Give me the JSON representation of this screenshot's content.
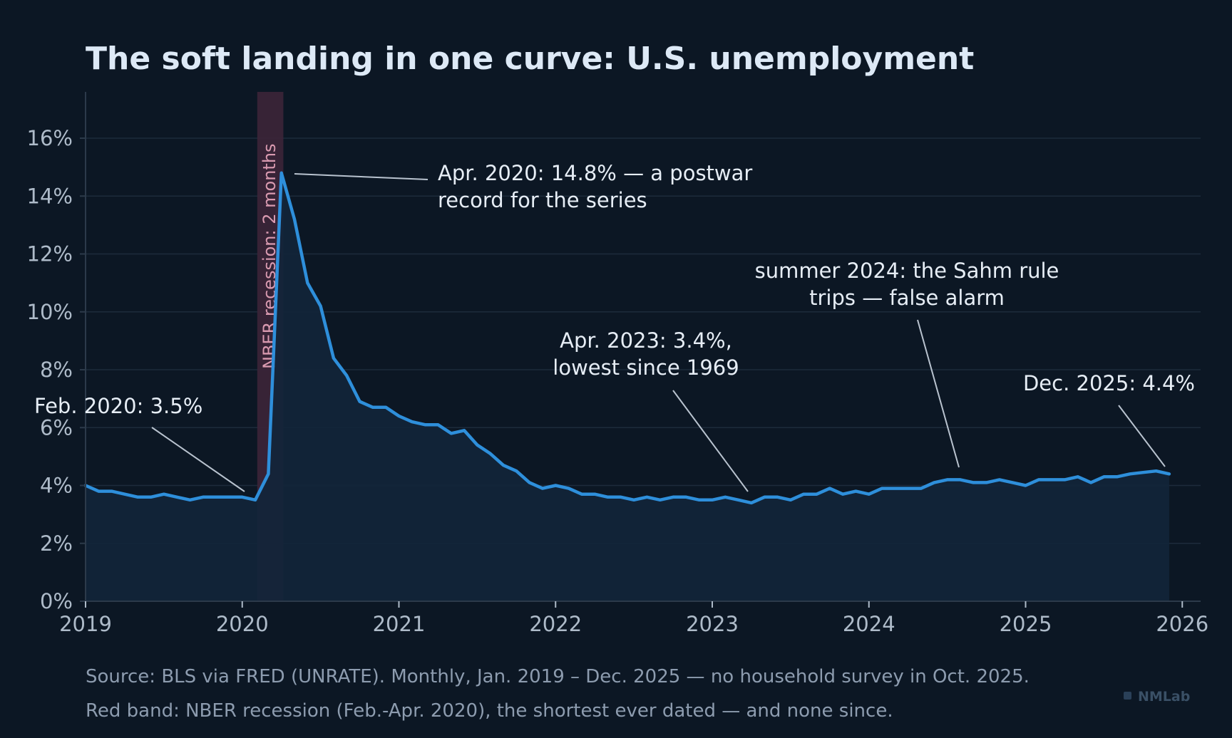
{
  "chart_data": {
    "type": "area",
    "title": "The soft landing in one curve: U.S. unemployment",
    "xlabel": "",
    "ylabel": "",
    "ylim": [
      0,
      17.6
    ],
    "y_ticks": [
      "0%",
      "2%",
      "4%",
      "6%",
      "8%",
      "10%",
      "12%",
      "14%",
      "16%"
    ],
    "x_ticks": [
      "2019",
      "2020",
      "2021",
      "2022",
      "2023",
      "2024",
      "2025",
      "2026"
    ],
    "grid": true,
    "start": "2019-01",
    "frequency": "monthly",
    "series": [
      {
        "values": [
          4.0,
          3.8,
          3.8,
          3.7,
          3.6,
          3.6,
          3.7,
          3.6,
          3.5,
          3.6,
          3.6,
          3.6,
          3.6,
          3.5,
          4.4,
          14.8,
          13.2,
          11.0,
          10.2,
          8.4,
          7.8,
          6.9,
          6.7,
          6.7,
          6.4,
          6.2,
          6.1,
          6.1,
          5.8,
          5.9,
          5.4,
          5.1,
          4.7,
          4.5,
          4.1,
          3.9,
          4.0,
          3.9,
          3.7,
          3.7,
          3.6,
          3.6,
          3.5,
          3.6,
          3.5,
          3.6,
          3.6,
          3.5,
          3.5,
          3.6,
          3.5,
          3.4,
          3.6,
          3.6,
          3.5,
          3.7,
          3.7,
          3.9,
          3.7,
          3.8,
          3.7,
          3.9,
          3.9,
          3.9,
          3.9,
          4.1,
          4.2,
          4.2,
          4.1,
          4.1,
          4.2,
          4.1,
          4.0,
          4.2,
          4.2,
          4.2,
          4.3,
          4.1,
          4.3,
          4.3,
          4.4,
          4.45,
          4.5,
          4.4
        ],
        "missing": [
          "2025-10"
        ]
      }
    ],
    "shaded_band": {
      "from": "2020-02",
      "to": "2020-04",
      "label": "NBER recession: 2 months"
    },
    "annotations": [
      {
        "text": [
          "Feb. 2020: 3.5%"
        ],
        "point": "2020-02"
      },
      {
        "text": [
          "Apr. 2020: 14.8% — a postwar",
          "record for the series"
        ],
        "point": "2020-04"
      },
      {
        "text": [
          "Apr. 2023: 3.4%,",
          "lowest since 1969"
        ],
        "point": "2023-04"
      },
      {
        "text": [
          "summer 2024: the Sahm rule",
          "trips — false alarm"
        ],
        "point": "2024-07"
      },
      {
        "text": [
          "Dec. 2025: 4.4%"
        ],
        "point": "2025-12"
      }
    ],
    "colors": {
      "line": "#2e8fdb",
      "fill": "#12253a",
      "band": "#3a2438",
      "grid": "#1d2b3b",
      "axis": "#2c3a4a"
    }
  },
  "footer": {
    "line1": "Source: BLS via FRED (UNRATE). Monthly, Jan. 2019 – Dec. 2025 — no household survey in Oct. 2025.",
    "line2": "Red band: NBER recession (Feb.-Apr. 2020), the shortest ever dated — and none since."
  },
  "brand": "NMLab"
}
